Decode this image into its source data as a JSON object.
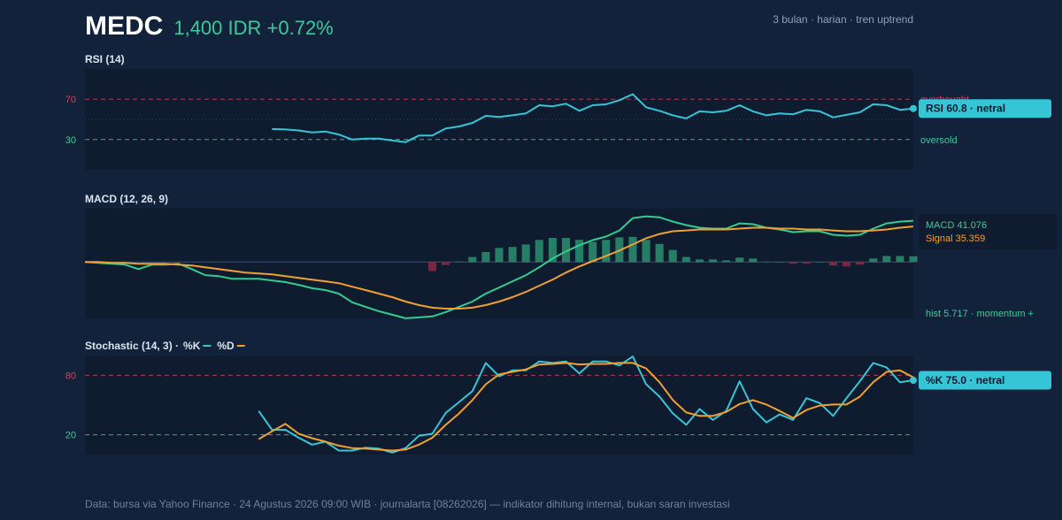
{
  "header": {
    "ticker": "MEDC",
    "price_text": "1,400 IDR +0.72%",
    "context": "3 bulan · harian · tren uptrend"
  },
  "footer": "Data: bursa via Yahoo Finance · 24 Agustus 2026 09:00 WIB · journalarta [08262026] — indikator dihitung internal, bukan saran investasi",
  "chart_data": [
    {
      "type": "line",
      "title": "RSI (14)",
      "ylim": [
        0,
        100
      ],
      "yticks": [
        30,
        70
      ],
      "ytick_colors": [
        "#3ec99a",
        "#d0405a"
      ],
      "reference_lines": [
        {
          "value": 70,
          "label": "overbought",
          "color": "#d0405a",
          "style": "dashed"
        },
        {
          "value": 30,
          "label": "oversold",
          "color": "#3ec99a",
          "style": "dashed"
        },
        {
          "value": 50,
          "color": "#3a4a63",
          "style": "dotted"
        }
      ],
      "badge": {
        "text": "RSI 60.8 · netral",
        "color": "#36c5d6"
      },
      "series": [
        {
          "name": "RSI",
          "color": "#36c5d6",
          "end_dot": true,
          "values": [
            null,
            null,
            null,
            null,
            null,
            null,
            null,
            null,
            null,
            null,
            null,
            null,
            null,
            null,
            40.4,
            40,
            39,
            37,
            38,
            35,
            30,
            31,
            31,
            29,
            27.5,
            34,
            34,
            41,
            43,
            46.5,
            53.5,
            52.5,
            54,
            56,
            64,
            63,
            65.5,
            58.5,
            64,
            65,
            69,
            75,
            62,
            58.5,
            54,
            51,
            58,
            57,
            58.5,
            64,
            58,
            54,
            56,
            55,
            59.5,
            58,
            52,
            54.5,
            57,
            65,
            64,
            59.5,
            60.8
          ]
        }
      ]
    },
    {
      "type": "line",
      "title": "MACD (12, 26, 9)",
      "ylim": [
        -56,
        53
      ],
      "zero_line": true,
      "legend_texts": [
        {
          "text": "MACD 41.076",
          "color": "#3ec99a"
        },
        {
          "text": "Signal 35.359",
          "color": "#f0a030"
        }
      ],
      "note": {
        "text": "hist 5.717 · momentum +",
        "color": "#3ec99a"
      },
      "series": [
        {
          "name": "hist",
          "type": "bar",
          "color": "#2a8f6e",
          "negative_color": "#8a2a47",
          "values": [
            null,
            null,
            null,
            null,
            null,
            null,
            null,
            null,
            null,
            null,
            null,
            null,
            null,
            null,
            null,
            null,
            null,
            null,
            null,
            null,
            null,
            null,
            null,
            null,
            null,
            null,
            -9,
            -3,
            0.5,
            5,
            10,
            14,
            15,
            17.5,
            22,
            24,
            24,
            22,
            20,
            22,
            24.5,
            25,
            22,
            18,
            12,
            5,
            2.6,
            2.6,
            1.7,
            4.4,
            3.5,
            0.3,
            0.3,
            -1.7,
            -1.7,
            0.3,
            -3.5,
            -4.4,
            -2.6,
            3.5,
            6,
            6,
            5.717
          ]
        },
        {
          "name": "MACD",
          "color": "#33cc8f",
          "values": [
            0,
            -0.9,
            -1.7,
            -2.6,
            -7,
            -2.6,
            -2.6,
            -1.7,
            -7,
            -13,
            -14,
            -16.6,
            -16.6,
            -16.6,
            -18.3,
            -20,
            -22.7,
            -26,
            -27.9,
            -31.4,
            -40,
            -44.5,
            -48.9,
            -52.4,
            -55.9,
            -55,
            -54.1,
            -49.8,
            -44.5,
            -39.3,
            -31.4,
            -25.3,
            -19.2,
            -13.1,
            -5.2,
            3.5,
            10.5,
            16.6,
            21.8,
            25.3,
            31.4,
            43.7,
            45.4,
            44.5,
            40.2,
            36.7,
            34.1,
            33.2,
            33.2,
            38.4,
            37.6,
            34.1,
            32.3,
            29.7,
            30.6,
            30.6,
            27.1,
            26.2,
            27.1,
            33.2,
            38.4,
            40.2,
            41.076
          ]
        },
        {
          "name": "Signal",
          "color": "#f0a030",
          "values": [
            0,
            0,
            -0.9,
            -0.9,
            -1.7,
            -1.7,
            -1.7,
            -2.6,
            -3.5,
            -5.2,
            -7,
            -8.7,
            -10.5,
            -11.4,
            -12.2,
            -14,
            -15.7,
            -17.5,
            -19.2,
            -21,
            -24.5,
            -27.9,
            -31.4,
            -34.9,
            -39.3,
            -42.8,
            -45.4,
            -46.3,
            -46.3,
            -45.4,
            -42.8,
            -39.3,
            -34.9,
            -29.7,
            -23.6,
            -17.5,
            -10.5,
            -4.4,
            0.9,
            6.1,
            11.4,
            17.5,
            23.6,
            27.9,
            30.6,
            31.4,
            32.3,
            32.3,
            32.3,
            33.2,
            34.1,
            34.1,
            33.2,
            33.2,
            32.3,
            32.3,
            31.4,
            30.6,
            30.6,
            31.4,
            32.3,
            34.1,
            35.359
          ]
        }
      ]
    },
    {
      "type": "line",
      "title": "Stochastic (14, 3) ·",
      "show_legend": true,
      "ylim": [
        0,
        100
      ],
      "yticks": [
        20,
        80
      ],
      "ytick_colors": [
        "#3ec99a",
        "#d0405a"
      ],
      "reference_lines": [
        {
          "value": 80,
          "color": "#d0405a",
          "style": "dashed"
        },
        {
          "value": 20,
          "color": "#3ec99a",
          "style": "dashed"
        }
      ],
      "badge": {
        "text": "%K 75.0 · netral",
        "color": "#36c5d6"
      },
      "series": [
        {
          "name": "%K",
          "color": "#36c5d6",
          "end_dot": true,
          "values": [
            null,
            null,
            null,
            null,
            null,
            null,
            null,
            null,
            null,
            null,
            null,
            null,
            null,
            44,
            25,
            25,
            17,
            10,
            13,
            4,
            4,
            7,
            6,
            2,
            6.5,
            19,
            21,
            42,
            53,
            64,
            92.5,
            79,
            85,
            85,
            94,
            92.5,
            94,
            82,
            94,
            94,
            90,
            99,
            71,
            58.5,
            41.5,
            30,
            46,
            35,
            44,
            74,
            46,
            32.5,
            40.5,
            35,
            57,
            52,
            39,
            57,
            74,
            92.5,
            88,
            73,
            75
          ]
        },
        {
          "name": "%D",
          "color": "#f0a030",
          "values": [
            null,
            null,
            null,
            null,
            null,
            null,
            null,
            null,
            null,
            null,
            null,
            null,
            null,
            15.5,
            23.5,
            31,
            21,
            16.5,
            13,
            9,
            6.5,
            6,
            5,
            4,
            5,
            10,
            17,
            30,
            41.5,
            55,
            71,
            81,
            83.5,
            86,
            91,
            91.5,
            92.5,
            91,
            91.5,
            91.5,
            92.5,
            92.5,
            87,
            73,
            55,
            42.5,
            39,
            39,
            43,
            51,
            55,
            50.5,
            44,
            37,
            45,
            49.5,
            50.5,
            50.5,
            58.5,
            73,
            83.5,
            85,
            78
          ]
        }
      ]
    }
  ]
}
